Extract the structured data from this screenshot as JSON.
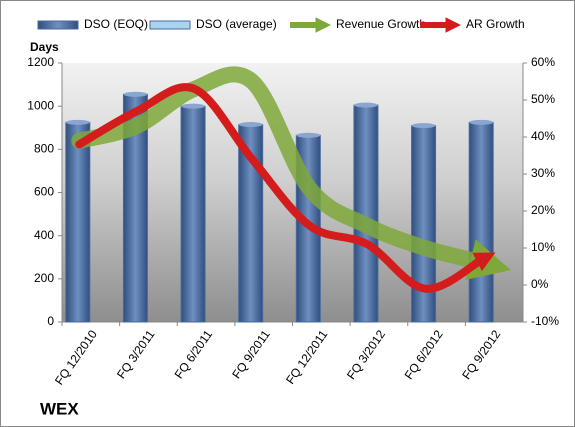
{
  "chart_data": {
    "type": "bar_line",
    "title": "WEX",
    "y_label": "Days",
    "categories": [
      "FQ 12/2010",
      "FQ 3/2011",
      "FQ 6/2011",
      "FQ 9/2011",
      "FQ 12/2011",
      "FQ 3/2012",
      "FQ 6/2012",
      "FQ 9/2012"
    ],
    "series": [
      {
        "name": "DSO (EOQ)",
        "type": "bar",
        "color": "#4a6a9c",
        "values": [
          925,
          1055,
          1000,
          915,
          865,
          1005,
          910,
          925
        ]
      },
      {
        "name": "DSO (average)",
        "type": "bar",
        "color": "#a8d4f0",
        "values": [
          null,
          null,
          null,
          null,
          null,
          null,
          null,
          null
        ]
      },
      {
        "name": "Revenue Growth",
        "type": "line",
        "axis": "y2",
        "color": "#7fa83a",
        "values": [
          39,
          43,
          53,
          55,
          26,
          16,
          10,
          6
        ]
      },
      {
        "name": "AR Growth",
        "type": "line",
        "axis": "y2",
        "color": "#d41c1c",
        "values": [
          38,
          47,
          53,
          34,
          16,
          11,
          -1,
          7
        ]
      }
    ],
    "ylim": [
      0,
      1200
    ],
    "yticks": [
      0,
      200,
      400,
      600,
      800,
      1000,
      1200
    ],
    "y2lim": [
      -10,
      60
    ],
    "y2ticks": [
      {
        "value": -10,
        "label": "-10%"
      },
      {
        "value": 0,
        "label": "0%"
      },
      {
        "value": 10,
        "label": "10%"
      },
      {
        "value": 20,
        "label": "20%"
      },
      {
        "value": 30,
        "label": "30%"
      },
      {
        "value": 40,
        "label": "40%"
      },
      {
        "value": 50,
        "label": "50%"
      },
      {
        "value": 60,
        "label": "60%"
      }
    ],
    "grid": false
  }
}
